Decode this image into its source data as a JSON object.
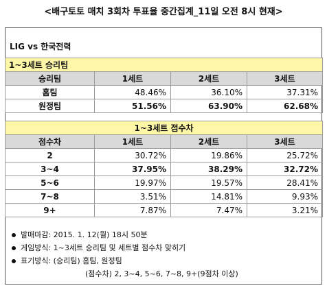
{
  "title": "<배구토토 매치 3회차 투표율 중간집계_11일 오전 8시 현재>",
  "match": "LIG vs 한국전력",
  "section1": {
    "header": "1~3세트 승리팀",
    "columns": [
      "승리팀",
      "1세트",
      "2세트",
      "3세트"
    ],
    "rows": [
      {
        "label": "홈팀",
        "values": [
          "48.46%",
          "36.10%",
          "37.31%"
        ]
      },
      {
        "label": "원정팀",
        "values": [
          "51.56%",
          "63.90%",
          "62.68%"
        ]
      }
    ]
  },
  "section2": {
    "header": "1~3세트 점수차",
    "columns": [
      "점수차",
      "1세트",
      "2세트",
      "3세트"
    ],
    "rows": [
      {
        "label": "2",
        "values": [
          "30.72%",
          "19.86%",
          "25.72%"
        ]
      },
      {
        "label": "3~4",
        "values": [
          "37.95%",
          "38.29%",
          "32.72%"
        ]
      },
      {
        "label": "5~6",
        "values": [
          "19.97%",
          "19.57%",
          "28.41%"
        ]
      },
      {
        "label": "7~8",
        "values": [
          "3.51%",
          "14.81%",
          "9.93%"
        ]
      },
      {
        "label": "9+",
        "values": [
          "7.87%",
          "7.47%",
          "3.21%"
        ]
      }
    ]
  },
  "notes": [
    "발매마감: 2015. 1. 12(월) 18시 50분",
    "게임방식: 1~3세트 승리팀 및 세트별 점수차 맞히기",
    "표기방식: (승리팀) 홈팀, 원정팀"
  ],
  "note_sub": "(점수차) 2, 3~4, 5~6, 7~8, 9+(9점차 이상)"
}
